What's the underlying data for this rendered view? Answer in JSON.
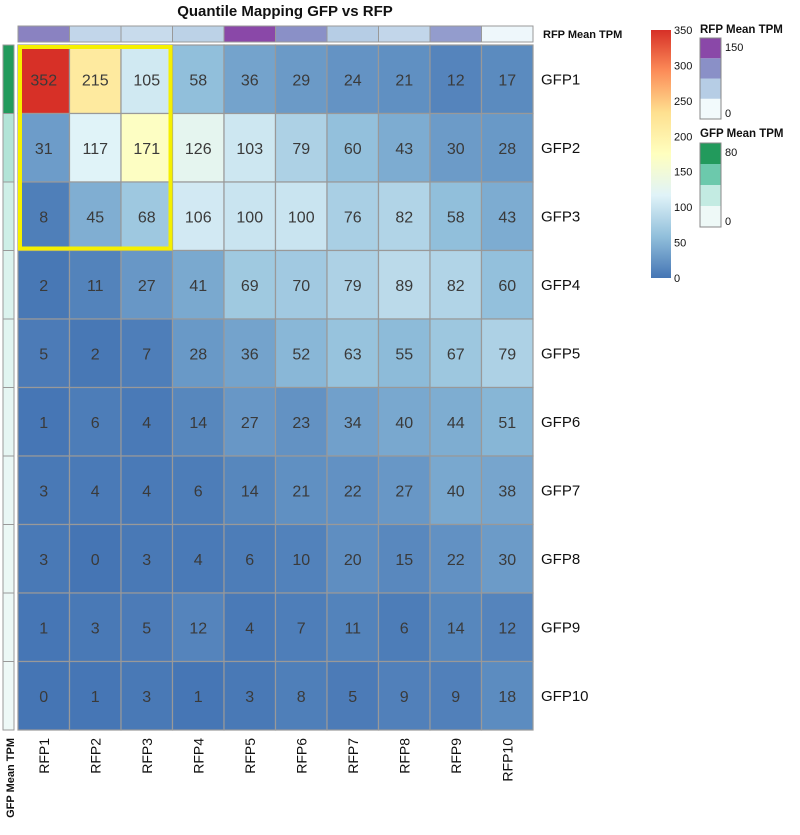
{
  "chart_data": {
    "type": "heatmap",
    "title": "Quantile Mapping GFP vs RFP",
    "columns": [
      "RFP1",
      "RFP2",
      "RFP3",
      "RFP4",
      "RFP5",
      "RFP6",
      "RFP7",
      "RFP8",
      "RFP9",
      "RFP10"
    ],
    "rows": [
      "GFP1",
      "GFP2",
      "GFP3",
      "GFP4",
      "GFP5",
      "GFP6",
      "GFP7",
      "GFP8",
      "GFP9",
      "GFP10"
    ],
    "values": [
      [
        352,
        215,
        105,
        58,
        36,
        29,
        24,
        21,
        12,
        17
      ],
      [
        31,
        117,
        171,
        126,
        103,
        79,
        60,
        43,
        30,
        28
      ],
      [
        8,
        45,
        68,
        106,
        100,
        100,
        76,
        82,
        58,
        43
      ],
      [
        2,
        11,
        27,
        41,
        69,
        70,
        79,
        89,
        82,
        60
      ],
      [
        5,
        2,
        7,
        28,
        36,
        52,
        63,
        55,
        67,
        79
      ],
      [
        1,
        6,
        4,
        14,
        27,
        23,
        34,
        40,
        44,
        51
      ],
      [
        3,
        4,
        4,
        6,
        14,
        21,
        22,
        27,
        40,
        38
      ],
      [
        3,
        0,
        3,
        4,
        6,
        10,
        20,
        15,
        22,
        30
      ],
      [
        1,
        3,
        5,
        12,
        4,
        7,
        11,
        6,
        14,
        12
      ],
      [
        0,
        1,
        3,
        1,
        3,
        8,
        5,
        9,
        9,
        18
      ]
    ],
    "color_scale": {
      "range": [
        0,
        350
      ],
      "ticks": [
        0,
        50,
        100,
        150,
        200,
        250,
        300,
        350
      ],
      "colors": [
        "#4575b4",
        "#91bfdb",
        "#e0f3f8",
        "#ffffbf",
        "#fee090",
        "#fc8d59",
        "#d73027"
      ]
    },
    "column_annotation": {
      "label": "RFP Mean TPM",
      "values": [
        110,
        40,
        35,
        45,
        160,
        100,
        50,
        40,
        90,
        3
      ],
      "range": [
        0,
        150
      ],
      "ticks": [
        0,
        150
      ],
      "colors": [
        "#f2fafc",
        "#b6cde5",
        "#8a90c7",
        "#8a48a8"
      ]
    },
    "row_annotation": {
      "label": "GFP Mean TPM",
      "values": [
        85,
        32,
        20,
        12,
        8,
        5,
        3,
        2,
        1,
        0
      ],
      "range": [
        0,
        80
      ],
      "ticks": [
        0,
        80
      ],
      "colors": [
        "#eef9f7",
        "#c3ebe2",
        "#6cc9ac",
        "#229a5c"
      ]
    },
    "highlight": {
      "rows": [
        0,
        2
      ],
      "cols": [
        0,
        2
      ],
      "color": "#f5f000"
    },
    "grid_color": "#999999",
    "grid": true,
    "legend_position": "right"
  }
}
